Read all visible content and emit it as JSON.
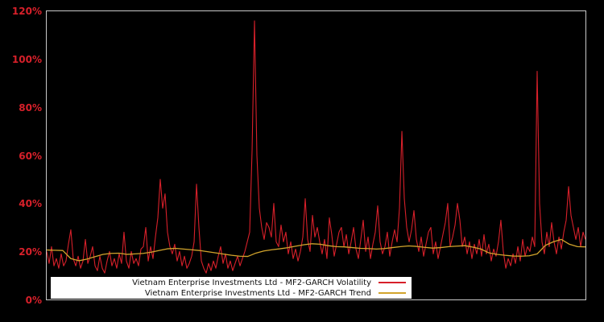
{
  "figure": {
    "background": "#000000",
    "frame_border_color": "#c9c9c9",
    "axis_label_color": "#d7202a",
    "legend_background": "#ffffff",
    "legend_text_color": "#101010"
  },
  "chart_data": {
    "type": "line",
    "title": "",
    "xlabel": "",
    "ylabel": "",
    "x_tick_labels": [],
    "y_tick_labels": [
      "0%",
      "20%",
      "40%",
      "60%",
      "80%",
      "100%",
      "120%"
    ],
    "ylim": [
      0,
      120
    ],
    "y_unit": "percent",
    "grid": false,
    "legend_position": "lower-left",
    "series": [
      {
        "name": "Vietnam Enterprise Investments Ltd - MF2-GARCH Volatility",
        "color": "#d7202a",
        "values": [
          20,
          15,
          22,
          14,
          17,
          13,
          19,
          14,
          16,
          23,
          29,
          17,
          14,
          18,
          13,
          16,
          25,
          15,
          18,
          22,
          14,
          12,
          18,
          13,
          11,
          16,
          20,
          14,
          17,
          13,
          19,
          15,
          28,
          16,
          13,
          20,
          15,
          17,
          14,
          21,
          22,
          30,
          16,
          22,
          17,
          26,
          34,
          50,
          38,
          44,
          28,
          22,
          19,
          23,
          16,
          20,
          14,
          18,
          13,
          15,
          18,
          24,
          48,
          30,
          16,
          13,
          11,
          15,
          12,
          16,
          13,
          18,
          22,
          15,
          19,
          13,
          16,
          12,
          15,
          18,
          14,
          17,
          20,
          24,
          28,
          62,
          116,
          60,
          38,
          30,
          25,
          32,
          30,
          26,
          40,
          24,
          22,
          31,
          24,
          28,
          19,
          24,
          17,
          21,
          16,
          20,
          26,
          42,
          25,
          20,
          35,
          26,
          30,
          24,
          19,
          25,
          17,
          34,
          27,
          18,
          23,
          28,
          30,
          22,
          27,
          19,
          24,
          30,
          21,
          17,
          25,
          33,
          20,
          26,
          17,
          23,
          28,
          39,
          24,
          19,
          22,
          28,
          18,
          24,
          29,
          24,
          38,
          70,
          42,
          30,
          24,
          29,
          37,
          25,
          20,
          26,
          18,
          23,
          28,
          30,
          19,
          24,
          17,
          22,
          27,
          32,
          40,
          22,
          26,
          31,
          40,
          33,
          22,
          26,
          19,
          24,
          17,
          23,
          19,
          25,
          18,
          27,
          19,
          23,
          16,
          21,
          18,
          24,
          33,
          20,
          13,
          17,
          14,
          19,
          15,
          22,
          16,
          25,
          18,
          22,
          20,
          26,
          22,
          95,
          40,
          24,
          19,
          28,
          22,
          32,
          24,
          19,
          26,
          21,
          28,
          33,
          47,
          35,
          30,
          25,
          30,
          22,
          28,
          25
        ]
      },
      {
        "name": "Vietnam Enterprise Investments Ltd - MF2-GARCH Trend",
        "color": "#d2a42c",
        "values": [
          20.6,
          20.5,
          20.4,
          17.0,
          16.1,
          16.8,
          17.8,
          18.8,
          19.2,
          19.3,
          18.8,
          19.0,
          19.2,
          19.7,
          20.4,
          21.1,
          21.3,
          21.0,
          20.7,
          20.4,
          19.9,
          19.4,
          18.9,
          18.4,
          18.0,
          17.9,
          19.3,
          20.2,
          20.7,
          21.1,
          21.6,
          22.2,
          22.8,
          23.2,
          23.0,
          22.4,
          22.0,
          21.9,
          21.6,
          21.3,
          21.2,
          21.0,
          21.2,
          21.6,
          22.0,
          22.3,
          22.1,
          21.7,
          21.4,
          21.6,
          22.0,
          22.2,
          22.4,
          21.8,
          21.0,
          19.4,
          18.8,
          18.4,
          18.1,
          18.0,
          18.2,
          19.0,
          22.5,
          24.0,
          25.0,
          23.0,
          22.0,
          21.9
        ]
      }
    ]
  }
}
